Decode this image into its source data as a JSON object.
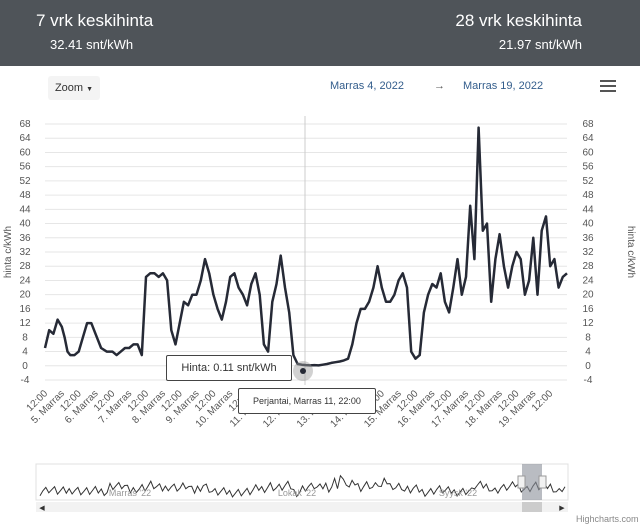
{
  "header": {
    "stat_left_title": "7 vrk keskihinta",
    "stat_left_value": "32.41 snt/kWh",
    "stat_right_title": "28 vrk keskihinta",
    "stat_right_value": "21.97 snt/kWh"
  },
  "toolbar": {
    "zoom_label": "Zoom",
    "date_from": "Marras 4, 2022",
    "date_arrow": "→",
    "date_to": "Marras 19, 2022",
    "menu_icon": "hamburger-menu-icon"
  },
  "tooltip": {
    "value_text": "Hinta: 0.11 snt/kWh",
    "date_text": "Perjantai, Marras 11, 22:00"
  },
  "navigator": {
    "labels": [
      "Marras '22",
      "Lokak '22",
      "Syysk '22"
    ]
  },
  "credits": "Highcharts.com",
  "chart_data": {
    "type": "line",
    "ylabel": "hinta c/kWh",
    "ylabel_right": "hinta c/kWh",
    "ylim": [
      -4,
      68
    ],
    "yticks": [
      -4,
      0,
      4,
      8,
      12,
      16,
      20,
      24,
      28,
      32,
      36,
      40,
      44,
      48,
      52,
      56,
      60,
      64,
      68
    ],
    "xlabels": [
      "12:00",
      "5. Marras",
      "12:00",
      "6. Marras",
      "12:00",
      "7. Marras",
      "12:00",
      "8. Marras",
      "12:00",
      "9. Marras",
      "12:00",
      "10. Marras",
      "12:00",
      "11. Marras",
      "12:00",
      "12. Marras",
      "12:00",
      "13. Marras",
      "12:00",
      "14. Marras",
      "12:00",
      "15. Marras",
      "12:00",
      "16. Marras",
      "12:00",
      "17. Marras",
      "12:00",
      "18. Marras",
      "12:00",
      "19. Marras",
      "12:00"
    ],
    "x_start_hours": 0,
    "x_end_hours": 372,
    "grid": true,
    "series": [
      {
        "color": "#262a36",
        "x_hours": [
          0,
          3,
          6,
          9,
          12,
          14,
          16,
          18,
          21,
          24,
          27,
          30,
          33,
          36,
          40,
          44,
          48,
          51,
          54,
          57,
          60,
          63,
          66,
          69,
          72,
          75,
          78,
          81,
          84,
          87,
          90,
          93,
          96,
          99,
          102,
          105,
          108,
          111,
          114,
          117,
          120,
          123,
          126,
          129,
          132,
          135,
          138,
          141,
          144,
          147,
          150,
          153,
          156,
          159,
          162,
          165,
          168,
          171,
          174,
          177,
          180,
          183,
          186,
          189,
          192,
          195,
          198,
          201,
          204,
          207,
          210,
          213,
          216,
          219,
          222,
          225,
          228,
          231,
          234,
          237,
          240,
          243,
          246,
          249,
          252,
          255,
          258,
          261,
          264,
          267,
          270,
          273,
          276,
          279,
          282,
          285,
          288,
          291,
          294,
          297,
          300,
          303,
          306,
          309,
          312,
          315,
          318,
          321,
          324,
          327,
          330,
          333,
          336,
          339,
          342,
          345,
          348,
          351,
          354,
          357,
          360,
          363,
          366,
          369,
          372
        ],
        "y": [
          5,
          10,
          9,
          13,
          11,
          8,
          4,
          3,
          3,
          4,
          8,
          12,
          12,
          9,
          5,
          4,
          4,
          3,
          4,
          5,
          5,
          6,
          6,
          3,
          25,
          26,
          26,
          25,
          26,
          24,
          10,
          6,
          12,
          18,
          17,
          20,
          20,
          24,
          30,
          26,
          20,
          16,
          13,
          18,
          25,
          26,
          22,
          20,
          17,
          23,
          26,
          20,
          6,
          4,
          18,
          23,
          31,
          22,
          15,
          3,
          0.5,
          0.3,
          0.2,
          0.11,
          0.2,
          0.1,
          0.3,
          0.5,
          0.8,
          1,
          1.2,
          1.5,
          2,
          6,
          12,
          16,
          16,
          18,
          22,
          28,
          22,
          18,
          18,
          20,
          24,
          26,
          22,
          4,
          2,
          3,
          15,
          20,
          23,
          22,
          26,
          18,
          15,
          22,
          30,
          20,
          25,
          45,
          30,
          67,
          38,
          40,
          18,
          30,
          37,
          28,
          22,
          28,
          32,
          30,
          20,
          24,
          36,
          20,
          38,
          42,
          28,
          30,
          22,
          25,
          26
        ]
      }
    ]
  }
}
